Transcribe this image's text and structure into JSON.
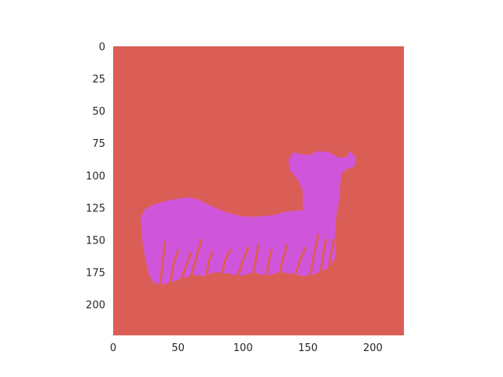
{
  "chart_data": {
    "type": "heatmap",
    "title": "",
    "xlabel": "",
    "ylabel": "",
    "xlim": [
      0,
      224
    ],
    "ylim": [
      224,
      0
    ],
    "grid": false,
    "x_ticks": [
      0,
      50,
      100,
      150,
      200
    ],
    "y_ticks": [
      0,
      25,
      50,
      75,
      100,
      125,
      150,
      175,
      200
    ],
    "background_class_color": "#DB5E56",
    "object_class_color": "#CF56DB",
    "object_region": {
      "description_shape": "sheep silhouette segmentation mask",
      "outline_data_coords": [
        [
          21,
          133
        ],
        [
          24,
          127
        ],
        [
          30,
          123
        ],
        [
          40,
          120
        ],
        [
          50,
          118
        ],
        [
          58,
          117
        ],
        [
          66,
          119
        ],
        [
          76,
          124
        ],
        [
          88,
          129
        ],
        [
          100,
          132
        ],
        [
          110,
          132
        ],
        [
          122,
          131
        ],
        [
          134,
          128
        ],
        [
          146,
          127
        ],
        [
          146,
          112
        ],
        [
          142,
          103
        ],
        [
          136,
          96
        ],
        [
          135,
          88
        ],
        [
          139,
          82
        ],
        [
          146,
          84
        ],
        [
          152,
          84
        ],
        [
          158,
          81
        ],
        [
          166,
          82
        ],
        [
          173,
          86
        ],
        [
          180,
          86
        ],
        [
          182,
          81
        ],
        [
          187,
          86
        ],
        [
          186,
          93
        ],
        [
          180,
          95
        ],
        [
          176,
          98
        ],
        [
          175,
          106
        ],
        [
          174,
          120
        ],
        [
          172,
          130
        ],
        [
          171,
          140
        ],
        [
          171,
          152
        ],
        [
          171,
          164
        ],
        [
          166,
          172
        ],
        [
          160,
          174
        ],
        [
          154,
          177
        ],
        [
          146,
          178
        ],
        [
          136,
          176
        ],
        [
          128,
          175
        ],
        [
          118,
          178
        ],
        [
          108,
          175
        ],
        [
          98,
          178
        ],
        [
          88,
          176
        ],
        [
          78,
          175
        ],
        [
          70,
          178
        ],
        [
          62,
          177
        ],
        [
          52,
          180
        ],
        [
          44,
          183
        ],
        [
          36,
          185
        ],
        [
          30,
          182
        ],
        [
          27,
          175
        ],
        [
          25,
          165
        ],
        [
          23,
          155
        ],
        [
          22,
          145
        ]
      ],
      "grass_blades_data_coords": [
        [
          [
            36,
            186
          ],
          [
            38,
            168
          ],
          [
            40,
            152
          ]
        ],
        [
          [
            44,
            184
          ],
          [
            46,
            170
          ],
          [
            50,
            158
          ]
        ],
        [
          [
            52,
            182
          ],
          [
            56,
            170
          ],
          [
            60,
            160
          ]
        ],
        [
          [
            60,
            178
          ],
          [
            64,
            164
          ],
          [
            68,
            150
          ]
        ],
        [
          [
            72,
            176
          ],
          [
            74,
            166
          ],
          [
            76,
            160
          ]
        ],
        [
          [
            84,
            176
          ],
          [
            86,
            166
          ],
          [
            90,
            158
          ]
        ],
        [
          [
            96,
            178
          ],
          [
            100,
            166
          ],
          [
            104,
            156
          ]
        ],
        [
          [
            108,
            176
          ],
          [
            110,
            164
          ],
          [
            112,
            154
          ]
        ],
        [
          [
            118,
            178
          ],
          [
            120,
            166
          ],
          [
            122,
            158
          ]
        ],
        [
          [
            128,
            176
          ],
          [
            131,
            164
          ],
          [
            134,
            154
          ]
        ],
        [
          [
            140,
            178
          ],
          [
            144,
            166
          ],
          [
            148,
            156
          ]
        ],
        [
          [
            152,
            177
          ],
          [
            155,
            160
          ],
          [
            158,
            146
          ]
        ],
        [
          [
            160,
            174
          ],
          [
            162,
            160
          ],
          [
            164,
            150
          ]
        ],
        [
          [
            166,
            172
          ],
          [
            168,
            160
          ],
          [
            170,
            150
          ]
        ]
      ]
    }
  }
}
